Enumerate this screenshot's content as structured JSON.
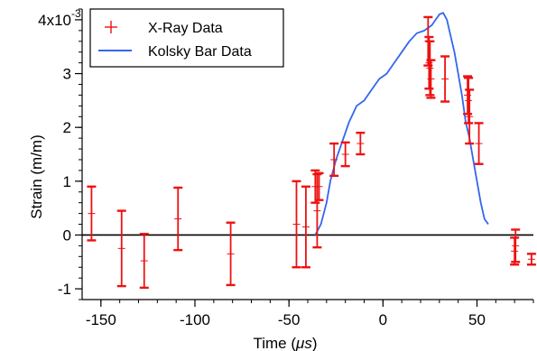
{
  "chart_data": {
    "type": "scatter",
    "xlabel_prefix": "Time (",
    "xlabel_mu": "μs",
    "xlabel_suffix": ")",
    "ylabel": "Strain (m/m)",
    "xlim": [
      -160,
      80
    ],
    "ylim": [
      -0.0012,
      0.0042
    ],
    "x_ticks": [
      -150,
      -100,
      -50,
      0,
      50
    ],
    "x_tick_labels": [
      "-150",
      "-100",
      "-50",
      "0",
      "50"
    ],
    "y_ticks": [
      -0.001,
      0,
      0.001,
      0.002,
      0.003,
      0.004
    ],
    "y_tick_labels": [
      "-1",
      "0",
      "1",
      "2",
      "3",
      "4x10"
    ],
    "y_exponent_label": "-3",
    "zero_line": true,
    "grid": false,
    "legend_position": "top-left",
    "colors": {
      "xray": "#ee1111",
      "kolsky": "#3366ee",
      "zero_line": "#000000"
    },
    "series": [
      {
        "name": "X-Ray Data",
        "type": "errorbar",
        "x": [
          -155,
          -139,
          -127,
          -109,
          -81,
          -46,
          -41,
          -36,
          -35,
          -34,
          -26,
          -20,
          -12,
          24,
          24.5,
          25,
          25.5,
          33,
          45,
          45.5,
          46,
          51,
          70,
          70.5,
          79
        ],
        "y": [
          0.0004,
          -0.00025,
          -0.00048,
          0.0003,
          -0.00035,
          0.0002,
          0.00015,
          0.0009,
          0.00045,
          0.0009,
          0.0014,
          0.0015,
          0.0017,
          0.0036,
          0.0032,
          0.0031,
          0.0029,
          0.0029,
          0.0026,
          0.0025,
          0.0022,
          0.0017,
          -0.0003,
          -0.0002,
          -0.00045
        ],
        "err": [
          0.0005,
          0.0007,
          0.0005,
          0.00058,
          0.00058,
          0.0008,
          0.00075,
          0.0003,
          0.00068,
          0.00025,
          0.0003,
          0.00022,
          0.0002,
          0.00045,
          0.00048,
          0.0005,
          0.00035,
          0.00042,
          0.00035,
          0.00042,
          0.0005,
          0.00038,
          0.00025,
          0.0003,
          0.0001
        ]
      },
      {
        "name": "Kolsky Bar Data",
        "type": "line",
        "x": [
          -36,
          -33,
          -30,
          -28,
          -25,
          -22,
          -18,
          -14,
          -10,
          -6,
          -2,
          2,
          6,
          10,
          14,
          18,
          22,
          26,
          30,
          32,
          34,
          36,
          38,
          40,
          42,
          44,
          46,
          48,
          50,
          52,
          54,
          56
        ],
        "y": [
          0.0,
          0.0002,
          0.0006,
          0.001,
          0.0014,
          0.0017,
          0.0021,
          0.0024,
          0.0025,
          0.0027,
          0.0029,
          0.003,
          0.0032,
          0.0034,
          0.0036,
          0.00375,
          0.0038,
          0.0039,
          0.0041,
          0.00413,
          0.004,
          0.0037,
          0.0034,
          0.003,
          0.0026,
          0.0021,
          0.0018,
          0.0014,
          0.001,
          0.0006,
          0.0003,
          0.0002
        ]
      }
    ]
  }
}
